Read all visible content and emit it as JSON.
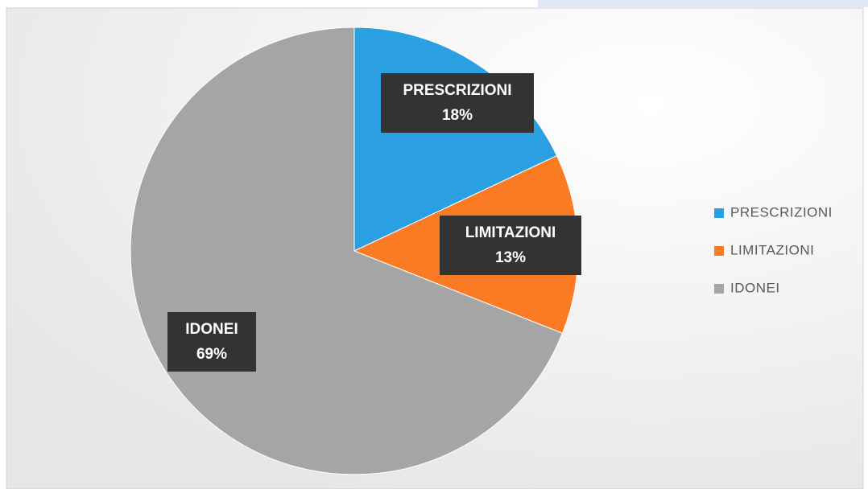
{
  "chart_data": {
    "type": "pie",
    "categories": [
      "PRESCRIZIONI",
      "LIMITAZIONI",
      "IDONEI"
    ],
    "values": [
      18,
      13,
      69
    ],
    "value_labels": [
      "18%",
      "13%",
      "69%"
    ],
    "colors": [
      "#2a9fe2",
      "#fb7a24",
      "#a5a5a5"
    ],
    "legend": "right"
  }
}
